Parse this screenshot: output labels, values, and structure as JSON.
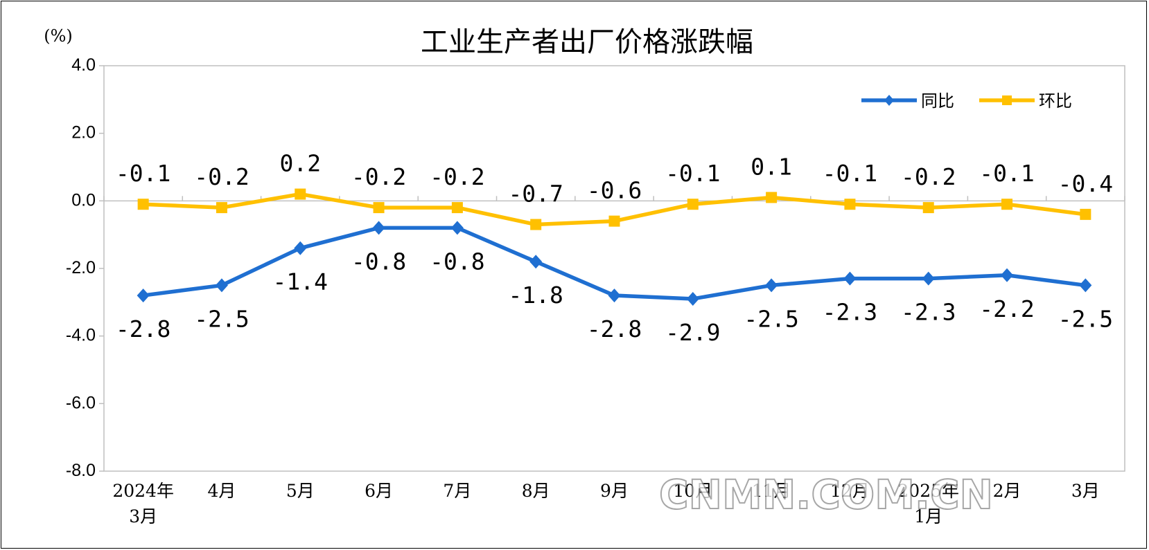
{
  "chart_data": {
    "type": "line",
    "title": "工业生产者出厂价格涨跌幅",
    "unit_label": "(%)",
    "ylim": [
      -8,
      4
    ],
    "y_ticks": [
      "4.0",
      "2.0",
      "0.0",
      "-2.0",
      "-4.0",
      "-6.0",
      "-8.0"
    ],
    "y_tick_values": [
      4,
      2,
      0,
      -2,
      -4,
      -6,
      -8
    ],
    "categories": [
      [
        "2024年",
        "3月"
      ],
      [
        "4月"
      ],
      [
        "5月"
      ],
      [
        "6月"
      ],
      [
        "7月"
      ],
      [
        "8月"
      ],
      [
        "9月"
      ],
      [
        "10月"
      ],
      [
        "11月"
      ],
      [
        "12月"
      ],
      [
        "2025年",
        "1月"
      ],
      [
        "2月"
      ],
      [
        "3月"
      ]
    ],
    "series": [
      {
        "name": "同比",
        "color": "#1f6fd1",
        "marker": "diamond",
        "label_position": "below",
        "values": [
          -2.8,
          -2.5,
          -1.4,
          -0.8,
          -0.8,
          -1.8,
          -2.8,
          -2.9,
          -2.5,
          -2.3,
          -2.3,
          -2.2,
          -2.5
        ],
        "labels": [
          "-2.8",
          "-2.5",
          "-1.4",
          "-0.8",
          "-0.8",
          "-1.8",
          "-2.8",
          "-2.9",
          "-2.5",
          "-2.3",
          "-2.3",
          "-2.2",
          "-2.5"
        ]
      },
      {
        "name": "环比",
        "color": "#ffc000",
        "marker": "square",
        "label_position": "above",
        "values": [
          -0.1,
          -0.2,
          0.2,
          -0.2,
          -0.2,
          -0.7,
          -0.6,
          -0.1,
          0.1,
          -0.1,
          -0.2,
          -0.1,
          -0.4
        ],
        "labels": [
          "-0.1",
          "-0.2",
          "0.2",
          "-0.2",
          "-0.2",
          "-0.7",
          "-0.6",
          "-0.1",
          "0.1",
          "-0.1",
          "-0.2",
          "-0.1",
          "-0.4"
        ]
      }
    ],
    "grid": false,
    "legend_position": "top-right"
  },
  "watermark": "CNMN.COM.CN"
}
